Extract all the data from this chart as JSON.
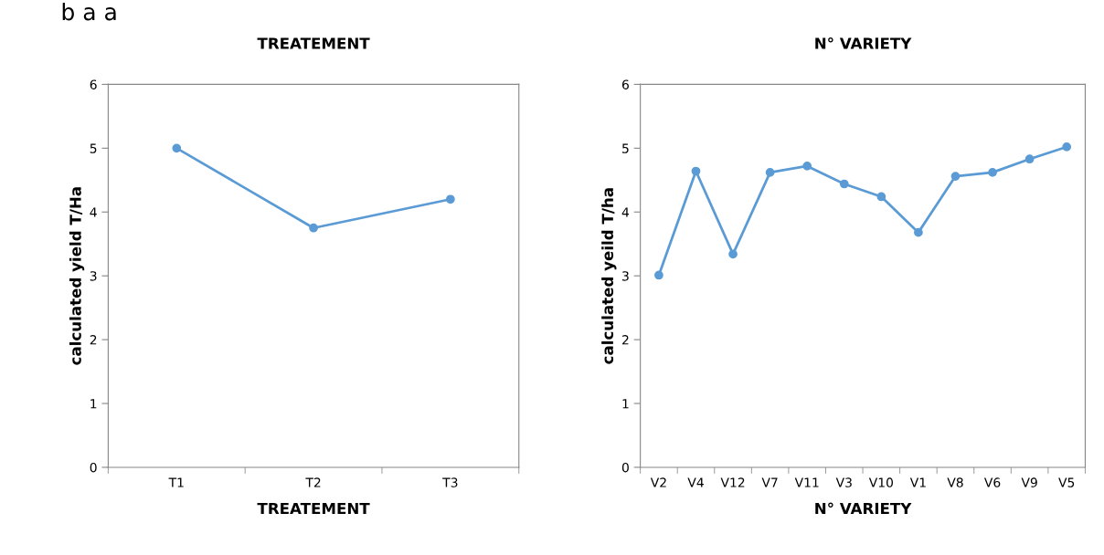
{
  "chart_data": [
    {
      "type": "line",
      "title": "TREATEMENT",
      "xlabel": "TREATEMENT",
      "ylabel": "calculated yield T/Ha",
      "categories": [
        "T1",
        "T2",
        "T3"
      ],
      "series": [
        {
          "color": "#5b9bd5",
          "values": [
            5.0,
            3.75,
            4.2
          ]
        }
      ],
      "ylim": [
        0,
        6
      ],
      "yticks": [
        0,
        1,
        2,
        3,
        4,
        5,
        6
      ],
      "marker": "circle",
      "line_style": "solid",
      "grid": false,
      "legend": false,
      "annotations": [
        "b a a"
      ]
    },
    {
      "type": "line",
      "title": "N° VARIETY",
      "xlabel": "N° VARIETY",
      "ylabel": "calculated yeild T/ha",
      "categories": [
        "V2",
        "V4",
        "V12",
        "V7",
        "V11",
        "V3",
        "V10",
        "V1",
        "V8",
        "V6",
        "V9",
        "V5"
      ],
      "series": [
        {
          "color": "#5b9bd5",
          "values": [
            3.01,
            4.64,
            3.34,
            4.62,
            4.72,
            4.44,
            4.24,
            3.68,
            4.56,
            4.62,
            4.83,
            5.02
          ]
        }
      ],
      "ylim": [
        0,
        6
      ],
      "yticks": [
        0,
        1,
        2,
        3,
        4,
        5,
        6
      ],
      "marker": "circle",
      "line_style": "solid",
      "grid": false,
      "legend": false
    }
  ]
}
